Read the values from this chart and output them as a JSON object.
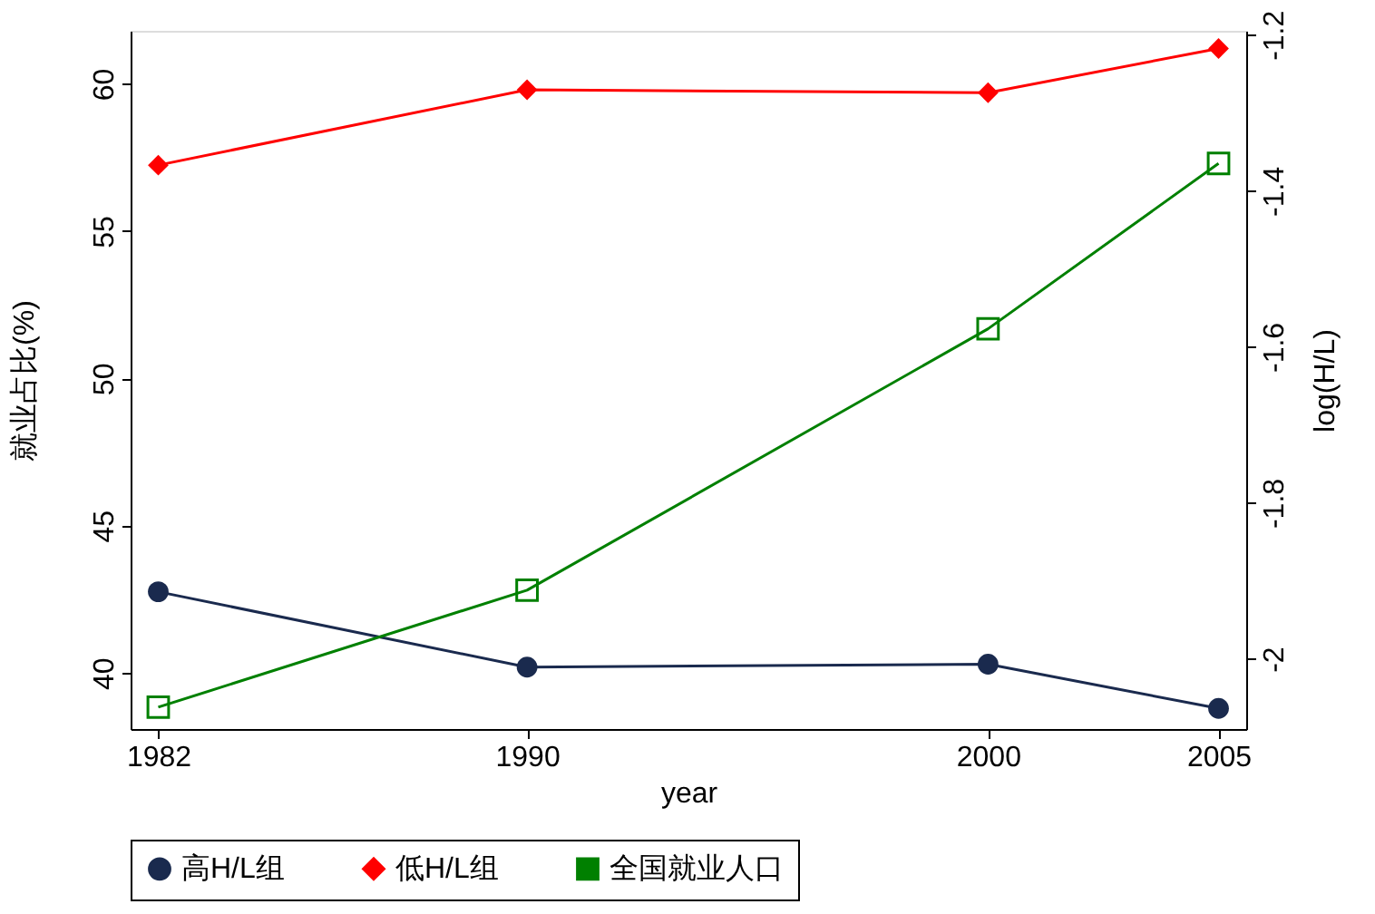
{
  "chart_data": {
    "type": "line",
    "xlabel": "year",
    "ylabel": "就业占比(%)",
    "y2label": "log(H/L)",
    "x": [
      1982,
      1990,
      2000,
      2005
    ],
    "xlim": [
      1981.4,
      2005.6
    ],
    "xticks": [
      1982,
      1990,
      2000,
      2005
    ],
    "ylim": [
      38.1,
      61.8
    ],
    "yticks": [
      40,
      45,
      50,
      55,
      60
    ],
    "y2lim": [
      -2.09,
      -1.195
    ],
    "y2ticks": [
      -2,
      -1.8,
      -1.6,
      -1.4,
      -1.2
    ],
    "grid": false,
    "legend": "bottom",
    "line_style": "solid",
    "series": [
      {
        "name": "高H/L组",
        "color": "#1a2a4e",
        "marker": "circle",
        "values": [
          42.76,
          40.2,
          40.3,
          38.8
        ]
      },
      {
        "name": "低H/L组",
        "color": "#ff0000",
        "marker": "diamond",
        "values": [
          57.24,
          59.8,
          59.7,
          61.2
        ]
      },
      {
        "name": "全国就业人口",
        "color": "#008000",
        "marker": "square",
        "axis": "y2",
        "values": [
          -2.062,
          -1.912,
          -1.577,
          -1.365
        ]
      }
    ]
  }
}
